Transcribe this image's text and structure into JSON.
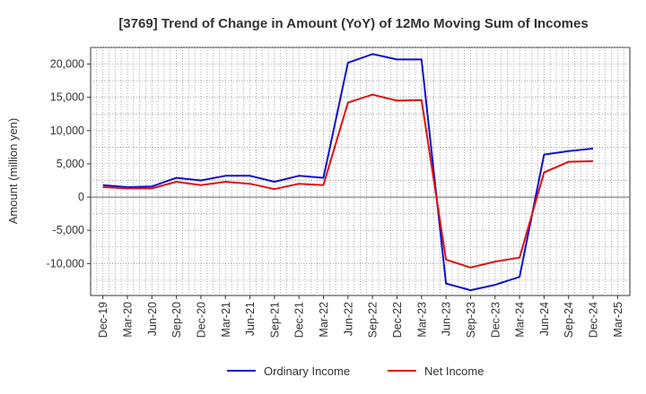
{
  "chart_data": {
    "type": "line",
    "title": "[3769]  Trend of Change in Amount (YoY) of 12Mo Moving Sum of Incomes",
    "ylabel": "Amount (million yen)",
    "xlabel": "",
    "ylim": [
      -14800,
      22500
    ],
    "y_ticks": [
      -10000,
      -5000,
      0,
      5000,
      10000,
      15000,
      20000
    ],
    "y_tick_labels": [
      "-10,000",
      "-5,000",
      "0",
      "5,000",
      "10,000",
      "15,000",
      "20,000"
    ],
    "x": [
      "Dec-19",
      "Mar-20",
      "Jun-20",
      "Sep-20",
      "Dec-20",
      "Mar-21",
      "Jun-21",
      "Sep-21",
      "Dec-21",
      "Mar-22",
      "Jun-22",
      "Sep-22",
      "Dec-22",
      "Mar-23",
      "Jun-23",
      "Sep-23",
      "Dec-23",
      "Mar-24",
      "Jun-24",
      "Sep-24",
      "Dec-24",
      "Mar-25"
    ],
    "x_tick_labels": [
      "Dec-19",
      "Mar-20",
      "Jun-20",
      "Sep-20",
      "Dec-20",
      "Mar-21",
      "Jun-21",
      "Sep-21",
      "Dec-21",
      "Mar-22",
      "Jun-22",
      "Sep-22",
      "Dec-22",
      "Mar-23",
      "Jun-23",
      "Sep-23",
      "Dec-23",
      "Mar-24",
      "Jun-24",
      "Sep-24",
      "Dec-24",
      "Mar-25"
    ],
    "grid": true,
    "legend_position": "bottom",
    "series": [
      {
        "name": "Ordinary Income",
        "color": "#1010cc",
        "values": [
          1800,
          1500,
          1600,
          2900,
          2500,
          3200,
          3200,
          2300,
          3200,
          2900,
          20200,
          21500,
          20700,
          20700,
          -13000,
          -14000,
          -13200,
          -12000,
          6400,
          6900,
          7300,
          null
        ]
      },
      {
        "name": "Net Income",
        "color": "#dd1111",
        "values": [
          1500,
          1300,
          1300,
          2300,
          1800,
          2300,
          2000,
          1200,
          2000,
          1800,
          14200,
          15400,
          14500,
          14600,
          -9400,
          -10600,
          -9700,
          -9100,
          3700,
          5300,
          5400,
          null
        ]
      }
    ]
  }
}
